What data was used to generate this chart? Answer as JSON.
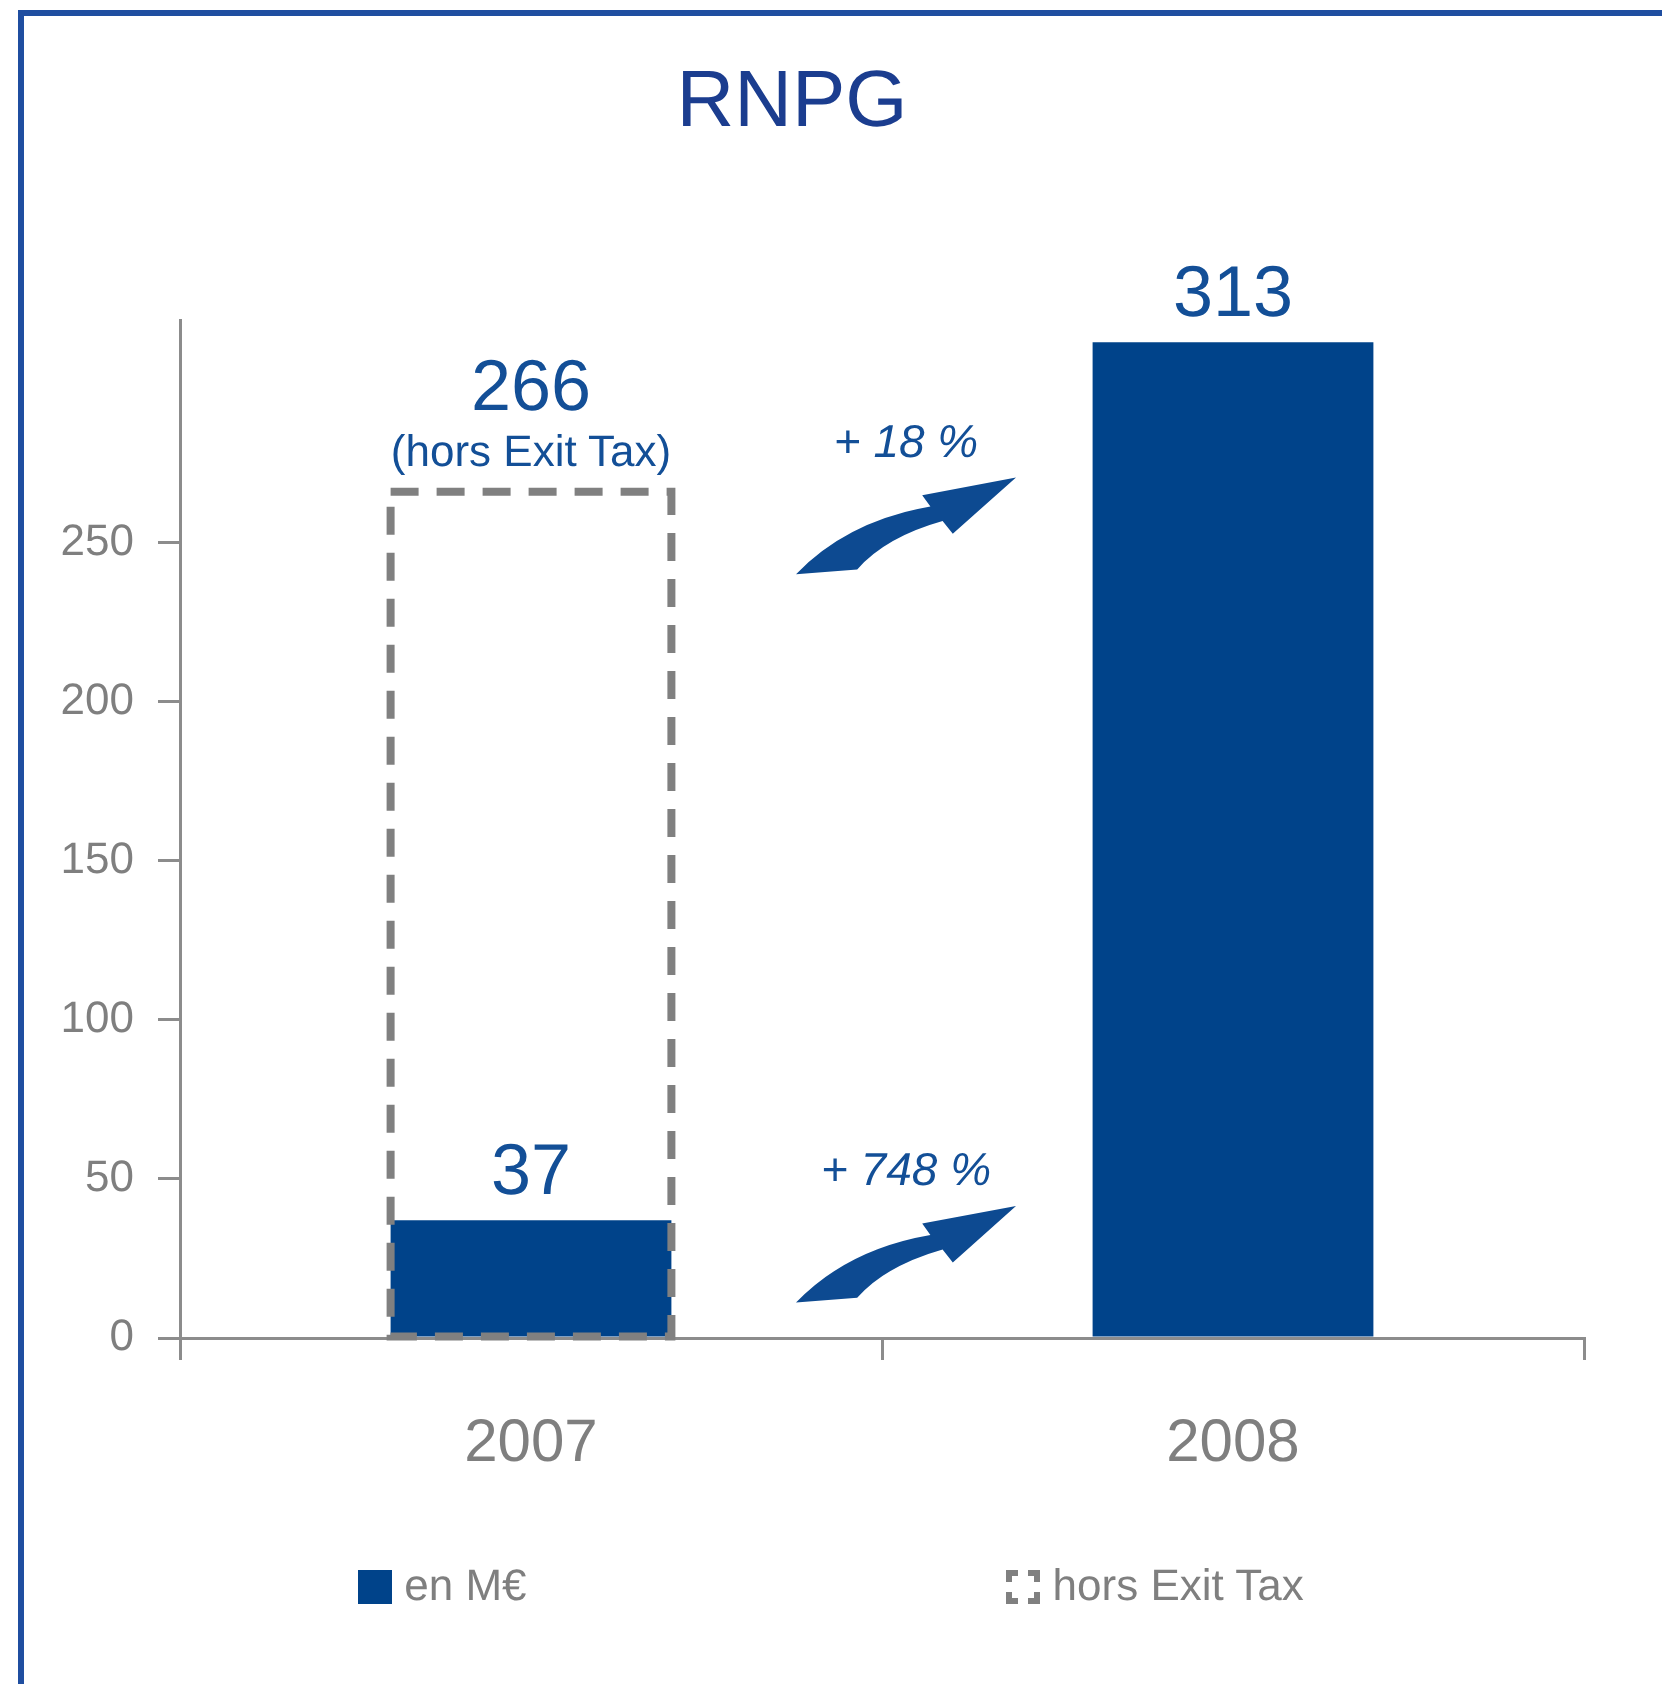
{
  "chart_data": {
    "type": "bar",
    "title": "RNPG",
    "categories": [
      "2007",
      "2008"
    ],
    "series": [
      {
        "name": "en M€",
        "color": "#00438a",
        "values": [
          37,
          313
        ]
      },
      {
        "name": "hors Exit Tax",
        "color": "#808080",
        "values": [
          266,
          null
        ],
        "line_style": "dashed"
      }
    ],
    "ylim": [
      0,
      320
    ],
    "yticks": [
      0,
      50,
      100,
      150,
      200,
      250
    ],
    "grid": false,
    "legend": "bottom",
    "data_labels": true,
    "annotations": [
      {
        "text": "(hors Exit Tax)",
        "x": "2007",
        "y": 266
      },
      "+ 18 %",
      "+ 748 %"
    ]
  }
}
